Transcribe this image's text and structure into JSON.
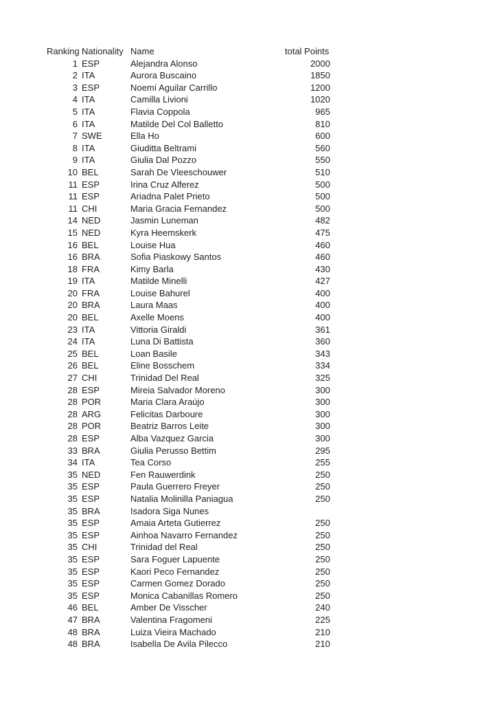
{
  "page": {
    "background_color": "#ffffff",
    "text_color": "#1e1e1e"
  },
  "table": {
    "headers": {
      "ranking": "Ranking",
      "nationality": "Nationality",
      "name": "Name",
      "points": "total Points"
    },
    "rows": [
      {
        "ranking": "1",
        "nationality": "ESP",
        "name": "Alejandra Alonso",
        "points": "2000"
      },
      {
        "ranking": "2",
        "nationality": "ITA",
        "name": "Aurora Buscaino",
        "points": "1850"
      },
      {
        "ranking": "3",
        "nationality": "ESP",
        "name": "Noemí Aguilar Carrillo",
        "points": "1200"
      },
      {
        "ranking": "4",
        "nationality": "ITA",
        "name": "Camilla Livioni",
        "points": "1020"
      },
      {
        "ranking": "5",
        "nationality": "ITA",
        "name": "Flavia Coppola",
        "points": "965"
      },
      {
        "ranking": "6",
        "nationality": "ITA",
        "name": "Matilde Del Col Balletto",
        "points": "810"
      },
      {
        "ranking": "7",
        "nationality": "SWE",
        "name": "Ella Ho",
        "points": "600"
      },
      {
        "ranking": "8",
        "nationality": "ITA",
        "name": "Giuditta Beltrami",
        "points": "560"
      },
      {
        "ranking": "9",
        "nationality": "ITA",
        "name": "Giulia Dal Pozzo",
        "points": "550"
      },
      {
        "ranking": "10",
        "nationality": "BEL",
        "name": "Sarah De Vleeschouwer",
        "points": "510"
      },
      {
        "ranking": "11",
        "nationality": "ESP",
        "name": "Irina Cruz Alferez",
        "points": "500"
      },
      {
        "ranking": "11",
        "nationality": "ESP",
        "name": "Ariadna Palet Prieto",
        "points": "500"
      },
      {
        "ranking": "11",
        "nationality": "CHI",
        "name": "Maria Gracia Fernandez",
        "points": "500"
      },
      {
        "ranking": "14",
        "nationality": "NED",
        "name": "Jasmin Luneman",
        "points": "482"
      },
      {
        "ranking": "15",
        "nationality": "NED",
        "name": "Kyra Heemskerk",
        "points": "475"
      },
      {
        "ranking": "16",
        "nationality": "BEL",
        "name": "Louise Hua",
        "points": "460"
      },
      {
        "ranking": "16",
        "nationality": "BRA",
        "name": "Sofia Piaskowy Santos",
        "points": "460"
      },
      {
        "ranking": "18",
        "nationality": "FRA",
        "name": "Kimy Barla",
        "points": "430"
      },
      {
        "ranking": "19",
        "nationality": "ITA",
        "name": "Matilde Minelli",
        "points": "427"
      },
      {
        "ranking": "20",
        "nationality": "FRA",
        "name": "Louise Bahurel",
        "points": "400"
      },
      {
        "ranking": "20",
        "nationality": "BRA",
        "name": "Laura Maas",
        "points": "400"
      },
      {
        "ranking": "20",
        "nationality": "BEL",
        "name": "Axelle Moens",
        "points": "400"
      },
      {
        "ranking": "23",
        "nationality": "ITA",
        "name": "Vittoria Giraldi",
        "points": "361"
      },
      {
        "ranking": "24",
        "nationality": "ITA",
        "name": "Luna Di Battista",
        "points": "360"
      },
      {
        "ranking": "25",
        "nationality": "BEL",
        "name": "Loan Basile",
        "points": "343"
      },
      {
        "ranking": "26",
        "nationality": "BEL",
        "name": "Eline Bosschem",
        "points": "334"
      },
      {
        "ranking": "27",
        "nationality": "CHI",
        "name": "Trinidad Del Real",
        "points": "325"
      },
      {
        "ranking": "28",
        "nationality": "ESP",
        "name": "Mireia Salvador Moreno",
        "points": "300"
      },
      {
        "ranking": "28",
        "nationality": "POR",
        "name": "Maria Clara Araújo",
        "points": "300"
      },
      {
        "ranking": "28",
        "nationality": "ARG",
        "name": "Felicitas Darboure",
        "points": "300"
      },
      {
        "ranking": "28",
        "nationality": "POR",
        "name": "Beatriz Barros Leite",
        "points": "300"
      },
      {
        "ranking": "28",
        "nationality": "ESP",
        "name": "Alba Vazquez Garcia",
        "points": "300"
      },
      {
        "ranking": "33",
        "nationality": "BRA",
        "name": "Giulia Perusso Bettim",
        "points": "295"
      },
      {
        "ranking": "34",
        "nationality": "ITA",
        "name": "Tea Corso",
        "points": "255"
      },
      {
        "ranking": "35",
        "nationality": "NED",
        "name": "Fen Rauwerdink",
        "points": "250"
      },
      {
        "ranking": "35",
        "nationality": "ESP",
        "name": "Paula Guerrero Freyer",
        "points": "250"
      },
      {
        "ranking": "35",
        "nationality": "ESP",
        "name": "Natalia Molinilla Paniagua",
        "points": "250"
      },
      {
        "ranking": "35",
        "nationality": "BRA",
        "name": "Isadora Siga Nunes",
        "points": ""
      },
      {
        "ranking": "35",
        "nationality": "ESP",
        "name": "Amaia Arteta Gutierrez",
        "points": "250"
      },
      {
        "ranking": "35",
        "nationality": "ESP",
        "name": "Ainhoa Navarro Fernandez",
        "points": "250"
      },
      {
        "ranking": "35",
        "nationality": "CHI",
        "name": "Trinidad del Real",
        "points": "250"
      },
      {
        "ranking": "35",
        "nationality": "ESP",
        "name": "Sara Foguer Lapuente",
        "points": "250"
      },
      {
        "ranking": "35",
        "nationality": "ESP",
        "name": "Kaori Peco Fernandez",
        "points": "250"
      },
      {
        "ranking": "35",
        "nationality": "ESP",
        "name": "Carmen Gomez Dorado",
        "points": "250"
      },
      {
        "ranking": "35",
        "nationality": "ESP",
        "name": "Monica Cabanillas Romero",
        "points": "250"
      },
      {
        "ranking": "46",
        "nationality": "BEL",
        "name": "Amber De Visscher",
        "points": "240"
      },
      {
        "ranking": "47",
        "nationality": "BRA",
        "name": "Valentina Fragomeni",
        "points": "225"
      },
      {
        "ranking": "48",
        "nationality": "BRA",
        "name": "Luiza Vieira Machado",
        "points": "210"
      },
      {
        "ranking": "48",
        "nationality": "BRA",
        "name": "Isabella De Avila Pilecco",
        "points": "210"
      }
    ]
  }
}
